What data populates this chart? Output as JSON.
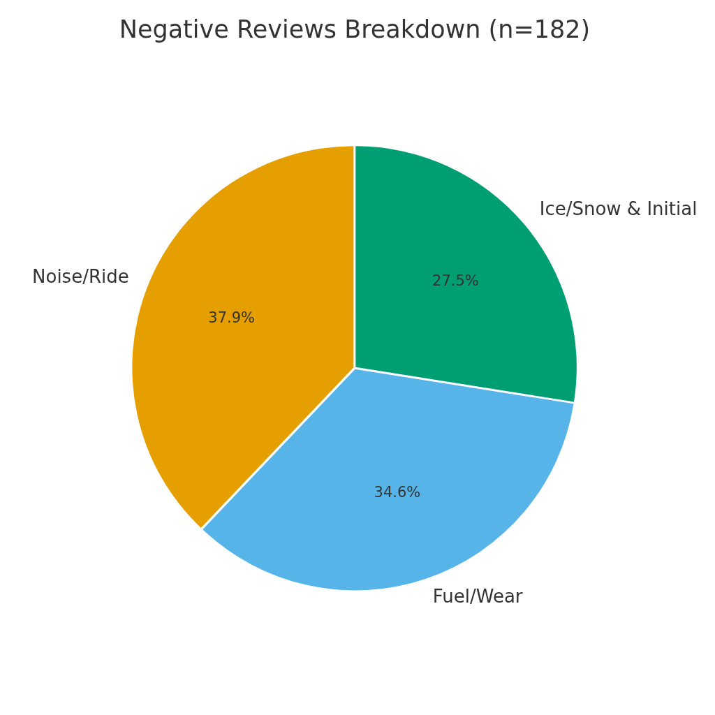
{
  "chart_data": {
    "type": "pie",
    "title": "Negative Reviews Breakdown (n=182)",
    "categories": [
      "Ice/Snow & Initial",
      "Fuel/Wear",
      "Noise/Ride"
    ],
    "values": [
      27.5,
      34.6,
      37.9
    ],
    "colors": [
      "#009e73",
      "#56b4e9",
      "#e69f00"
    ],
    "value_labels": [
      "27.5%",
      "34.6%",
      "37.9%"
    ],
    "legend": false
  }
}
